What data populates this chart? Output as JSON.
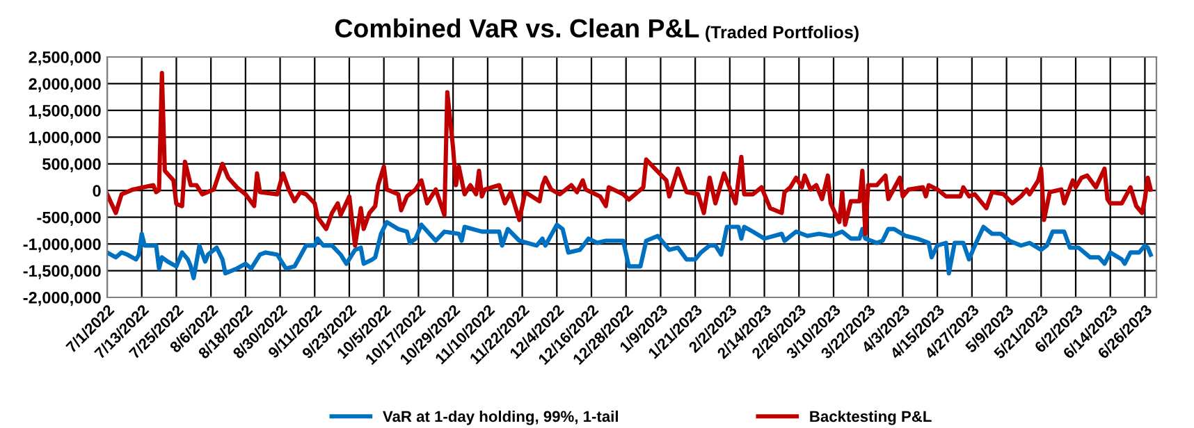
{
  "chart_data": {
    "type": "line",
    "title": "Combined VaR vs. Clean P&L",
    "subtitle": "(Traded Portfolios)",
    "xlim": [
      "2022-07-01",
      "2023-06-30"
    ],
    "xticks": [
      {
        "value": "2022-07-01",
        "label": "7/1/2022"
      },
      {
        "value": "2022-07-13",
        "label": "7/13/2022"
      },
      {
        "value": "2022-07-25",
        "label": "7/25/2022"
      },
      {
        "value": "2022-08-06",
        "label": "8/6/2022"
      },
      {
        "value": "2022-08-18",
        "label": "8/18/2022"
      },
      {
        "value": "2022-08-30",
        "label": "8/30/2022"
      },
      {
        "value": "2022-09-11",
        "label": "9/11/2022"
      },
      {
        "value": "2022-09-23",
        "label": "9/23/2022"
      },
      {
        "value": "2022-10-05",
        "label": "10/5/2022"
      },
      {
        "value": "2022-10-17",
        "label": "10/17/2022"
      },
      {
        "value": "2022-10-29",
        "label": "10/29/2022"
      },
      {
        "value": "2022-11-10",
        "label": "11/10/2022"
      },
      {
        "value": "2022-11-22",
        "label": "11/22/2022"
      },
      {
        "value": "2022-12-04",
        "label": "12/4/2022"
      },
      {
        "value": "2022-12-16",
        "label": "12/16/2022"
      },
      {
        "value": "2022-12-28",
        "label": "12/28/2022"
      },
      {
        "value": "2023-01-09",
        "label": "1/9/2023"
      },
      {
        "value": "2023-01-21",
        "label": "1/21/2023"
      },
      {
        "value": "2023-02-02",
        "label": "2/2/2023"
      },
      {
        "value": "2023-02-14",
        "label": "2/14/2023"
      },
      {
        "value": "2023-02-26",
        "label": "2/26/2023"
      },
      {
        "value": "2023-03-10",
        "label": "3/10/2023"
      },
      {
        "value": "2023-03-22",
        "label": "3/22/2023"
      },
      {
        "value": "2023-04-03",
        "label": "4/3/2023"
      },
      {
        "value": "2023-04-15",
        "label": "4/15/2023"
      },
      {
        "value": "2023-04-27",
        "label": "4/27/2023"
      },
      {
        "value": "2023-05-09",
        "label": "5/9/2023"
      },
      {
        "value": "2023-05-21",
        "label": "5/21/2023"
      },
      {
        "value": "2023-06-02",
        "label": "6/2/2023"
      },
      {
        "value": "2023-06-14",
        "label": "6/14/2023"
      },
      {
        "value": "2023-06-26",
        "label": "6/26/2023"
      }
    ],
    "ylim": [
      -2000000,
      2500000
    ],
    "yticks": [
      {
        "value": -2000000,
        "label": "-2,000,000"
      },
      {
        "value": -1500000,
        "label": "-1,500,000"
      },
      {
        "value": -1000000,
        "label": "-1,000,000"
      },
      {
        "value": -500000,
        "label": "-500,000"
      },
      0,
      {
        "value": 500000,
        "label": "500,000"
      },
      {
        "value": 1000000,
        "label": "1,000,000"
      },
      {
        "value": 1500000,
        "label": "1,500,000"
      },
      {
        "value": 2000000,
        "label": "2,000,000"
      },
      {
        "value": 2500000,
        "label": "2,500,000"
      }
    ],
    "grid": true,
    "legend": "bottom",
    "marker": "none",
    "line_style": "solid",
    "series": [
      {
        "name": "VaR at 1-day holding, 99%, 1-tail",
        "color": "#0070c0",
        "x": [
          "2022-07-01",
          "2022-07-04",
          "2022-07-06",
          "2022-07-08",
          "2022-07-11",
          "2022-07-12",
          "2022-07-13",
          "2022-07-14",
          "2022-07-18",
          "2022-07-19",
          "2022-07-20",
          "2022-07-22",
          "2022-07-25",
          "2022-07-27",
          "2022-07-29",
          "2022-07-30",
          "2022-07-31",
          "2022-08-02",
          "2022-08-04",
          "2022-08-05",
          "2022-08-08",
          "2022-08-10",
          "2022-08-11",
          "2022-08-15",
          "2022-08-18",
          "2022-08-20",
          "2022-08-23",
          "2022-08-25",
          "2022-08-29",
          "2022-09-01",
          "2022-09-04",
          "2022-09-08",
          "2022-09-11",
          "2022-09-12",
          "2022-09-14",
          "2022-09-17",
          "2022-09-20",
          "2022-09-22",
          "2022-09-25",
          "2022-09-27",
          "2022-09-28",
          "2022-10-01",
          "2022-10-02",
          "2022-10-04",
          "2022-10-06",
          "2022-10-10",
          "2022-10-13",
          "2022-10-14",
          "2022-10-16",
          "2022-10-18",
          "2022-10-23",
          "2022-10-26",
          "2022-10-31",
          "2022-11-01",
          "2022-11-02",
          "2022-11-08",
          "2022-11-14",
          "2022-11-15",
          "2022-11-17",
          "2022-11-21",
          "2022-11-27",
          "2022-11-29",
          "2022-11-30",
          "2022-12-04",
          "2022-12-06",
          "2022-12-08",
          "2022-12-12",
          "2022-12-15",
          "2022-12-18",
          "2022-12-21",
          "2022-12-27",
          "2022-12-29",
          "2023-01-02",
          "2023-01-04",
          "2023-01-08",
          "2023-01-12",
          "2023-01-15",
          "2023-01-18",
          "2023-01-21",
          "2023-01-23",
          "2023-01-26",
          "2023-01-28",
          "2023-01-30",
          "2023-02-01",
          "2023-02-05",
          "2023-02-06",
          "2023-02-07",
          "2023-02-10",
          "2023-02-14",
          "2023-02-20",
          "2023-02-21",
          "2023-02-25",
          "2023-02-27",
          "2023-03-01",
          "2023-03-05",
          "2023-03-09",
          "2023-03-13",
          "2023-03-16",
          "2023-03-19",
          "2023-03-20",
          "2023-03-21",
          "2023-03-25",
          "2023-03-27",
          "2023-03-29",
          "2023-03-31",
          "2023-04-04",
          "2023-04-08",
          "2023-04-12",
          "2023-04-13",
          "2023-04-15",
          "2023-04-18",
          "2023-04-19",
          "2023-04-21",
          "2023-04-24",
          "2023-04-26",
          "2023-04-28",
          "2023-05-01",
          "2023-05-04",
          "2023-05-07",
          "2023-05-10",
          "2023-05-14",
          "2023-05-17",
          "2023-05-21",
          "2023-05-23",
          "2023-05-25",
          "2023-05-29",
          "2023-05-31",
          "2023-06-03",
          "2023-06-07",
          "2023-06-10",
          "2023-06-12",
          "2023-06-14",
          "2023-06-18",
          "2023-06-19",
          "2023-06-21",
          "2023-06-24",
          "2023-06-26",
          "2023-06-27",
          "2023-06-28"
        ],
        "values": [
          -1160000,
          -1250000,
          -1160000,
          -1200000,
          -1290000,
          -1200000,
          -810000,
          -1030000,
          -1030000,
          -1460000,
          -1250000,
          -1330000,
          -1420000,
          -1160000,
          -1290000,
          -1420000,
          -1640000,
          -1030000,
          -1330000,
          -1200000,
          -1070000,
          -1290000,
          -1550000,
          -1460000,
          -1370000,
          -1460000,
          -1200000,
          -1160000,
          -1200000,
          -1460000,
          -1420000,
          -1030000,
          -1030000,
          -900000,
          -1030000,
          -1030000,
          -1200000,
          -1370000,
          -1110000,
          -1070000,
          -1370000,
          -1290000,
          -1250000,
          -810000,
          -590000,
          -720000,
          -770000,
          -980000,
          -900000,
          -640000,
          -940000,
          -770000,
          -810000,
          -940000,
          -680000,
          -770000,
          -770000,
          -1030000,
          -720000,
          -940000,
          -1030000,
          -900000,
          -1030000,
          -640000,
          -720000,
          -1160000,
          -1110000,
          -900000,
          -980000,
          -940000,
          -940000,
          -1420000,
          -1420000,
          -940000,
          -850000,
          -1110000,
          -1070000,
          -1290000,
          -1290000,
          -1160000,
          -1030000,
          -1030000,
          -1200000,
          -680000,
          -680000,
          -900000,
          -680000,
          -770000,
          -900000,
          -810000,
          -940000,
          -770000,
          -810000,
          -850000,
          -810000,
          -850000,
          -770000,
          -900000,
          -900000,
          -720000,
          -900000,
          -980000,
          -940000,
          -720000,
          -720000,
          -850000,
          -900000,
          -980000,
          -1250000,
          -1030000,
          -980000,
          -1550000,
          -980000,
          -980000,
          -1290000,
          -1030000,
          -680000,
          -810000,
          -810000,
          -940000,
          -1030000,
          -980000,
          -1110000,
          -1030000,
          -770000,
          -770000,
          -1070000,
          -1070000,
          -1250000,
          -1250000,
          -1370000,
          -1160000,
          -1290000,
          -1370000,
          -1160000,
          -1160000,
          -1030000,
          -1070000,
          -1200000
        ]
      },
      {
        "name": "Backtesting P&L",
        "color": "#c00000",
        "x": [
          "2022-07-01",
          "2022-07-04",
          "2022-07-06",
          "2022-07-10",
          "2022-07-17",
          "2022-07-18",
          "2022-07-19",
          "2022-07-20",
          "2022-07-21",
          "2022-07-24",
          "2022-07-25",
          "2022-07-27",
          "2022-07-28",
          "2022-07-30",
          "2022-08-01",
          "2022-08-03",
          "2022-08-07",
          "2022-08-10",
          "2022-08-12",
          "2022-08-15",
          "2022-08-18",
          "2022-08-21",
          "2022-08-22",
          "2022-08-23",
          "2022-08-29",
          "2022-08-31",
          "2022-09-02",
          "2022-09-04",
          "2022-09-06",
          "2022-09-08",
          "2022-09-11",
          "2022-09-12",
          "2022-09-15",
          "2022-09-17",
          "2022-09-19",
          "2022-09-20",
          "2022-09-23",
          "2022-09-25",
          "2022-09-27",
          "2022-09-28",
          "2022-09-30",
          "2022-10-02",
          "2022-10-03",
          "2022-10-05",
          "2022-10-06",
          "2022-10-10",
          "2022-10-11",
          "2022-10-13",
          "2022-10-16",
          "2022-10-18",
          "2022-10-20",
          "2022-10-23",
          "2022-10-26",
          "2022-10-27",
          "2022-10-29",
          "2022-10-30",
          "2022-10-31",
          "2022-11-02",
          "2022-11-04",
          "2022-11-06",
          "2022-11-07",
          "2022-11-08",
          "2022-11-09",
          "2022-11-14",
          "2022-11-16",
          "2022-11-18",
          "2022-11-21",
          "2022-11-23",
          "2022-11-28",
          "2022-11-29",
          "2022-11-30",
          "2022-12-02",
          "2022-12-05",
          "2022-12-09",
          "2022-12-11",
          "2022-12-13",
          "2022-12-14",
          "2022-12-19",
          "2022-12-21",
          "2022-12-22",
          "2022-12-27",
          "2022-12-29",
          "2023-01-03",
          "2023-01-04",
          "2023-01-07",
          "2023-01-11",
          "2023-01-12",
          "2023-01-15",
          "2023-01-18",
          "2023-01-22",
          "2023-01-24",
          "2023-01-26",
          "2023-01-28",
          "2023-01-31",
          "2023-02-04",
          "2023-02-06",
          "2023-02-07",
          "2023-02-10",
          "2023-02-13",
          "2023-02-16",
          "2023-02-20",
          "2023-02-21",
          "2023-02-23",
          "2023-02-25",
          "2023-02-27",
          "2023-02-28",
          "2023-03-02",
          "2023-03-04",
          "2023-03-06",
          "2023-03-08",
          "2023-03-09",
          "2023-03-12",
          "2023-03-13",
          "2023-03-14",
          "2023-03-16",
          "2023-03-19",
          "2023-03-20",
          "2023-03-21",
          "2023-03-22",
          "2023-03-25",
          "2023-03-28",
          "2023-03-29",
          "2023-04-02",
          "2023-04-03",
          "2023-04-05",
          "2023-04-10",
          "2023-04-11",
          "2023-04-12",
          "2023-04-15",
          "2023-04-18",
          "2023-04-23",
          "2023-04-24",
          "2023-04-26",
          "2023-04-28",
          "2023-05-02",
          "2023-05-04",
          "2023-05-08",
          "2023-05-11",
          "2023-05-14",
          "2023-05-16",
          "2023-05-17",
          "2023-05-20",
          "2023-05-21",
          "2023-05-22",
          "2023-05-24",
          "2023-05-28",
          "2023-05-29",
          "2023-06-01",
          "2023-06-02",
          "2023-06-04",
          "2023-06-06",
          "2023-06-09",
          "2023-06-12",
          "2023-06-13",
          "2023-06-14",
          "2023-06-18",
          "2023-06-21",
          "2023-06-23",
          "2023-06-25",
          "2023-06-26",
          "2023-06-27",
          "2023-06-28"
        ],
        "values": [
          -70000,
          -420000,
          -70000,
          20000,
          100000,
          -30000,
          10000,
          2200000,
          370000,
          190000,
          -250000,
          -290000,
          540000,
          100000,
          100000,
          -70000,
          20000,
          500000,
          240000,
          60000,
          -70000,
          -290000,
          320000,
          -30000,
          -70000,
          320000,
          20000,
          -200000,
          -30000,
          -70000,
          -240000,
          -500000,
          -720000,
          -420000,
          -240000,
          -460000,
          -110000,
          -1030000,
          -330000,
          -720000,
          -420000,
          -290000,
          100000,
          450000,
          20000,
          -70000,
          -370000,
          -110000,
          20000,
          190000,
          -240000,
          20000,
          -460000,
          1840000,
          800000,
          100000,
          450000,
          -70000,
          100000,
          -70000,
          370000,
          -110000,
          20000,
          100000,
          -240000,
          -30000,
          -550000,
          -30000,
          -200000,
          100000,
          240000,
          20000,
          -70000,
          100000,
          -30000,
          190000,
          20000,
          -110000,
          -290000,
          60000,
          -70000,
          -170000,
          60000,
          580000,
          410000,
          190000,
          -110000,
          410000,
          -30000,
          -70000,
          -420000,
          240000,
          -240000,
          320000,
          -240000,
          630000,
          -70000,
          -70000,
          60000,
          -330000,
          -420000,
          -30000,
          60000,
          240000,
          60000,
          280000,
          20000,
          100000,
          -160000,
          280000,
          -240000,
          -590000,
          -30000,
          -640000,
          -200000,
          -200000,
          370000,
          -810000,
          100000,
          100000,
          280000,
          -160000,
          240000,
          -110000,
          20000,
          60000,
          -110000,
          100000,
          20000,
          -110000,
          -110000,
          60000,
          -110000,
          -70000,
          -330000,
          -30000,
          -70000,
          -240000,
          -110000,
          20000,
          -70000,
          190000,
          410000,
          -550000,
          -30000,
          20000,
          -240000,
          190000,
          60000,
          240000,
          280000,
          60000,
          410000,
          -160000,
          -240000,
          -240000,
          60000,
          -290000,
          -420000,
          -160000,
          240000,
          20000
        ]
      }
    ]
  }
}
